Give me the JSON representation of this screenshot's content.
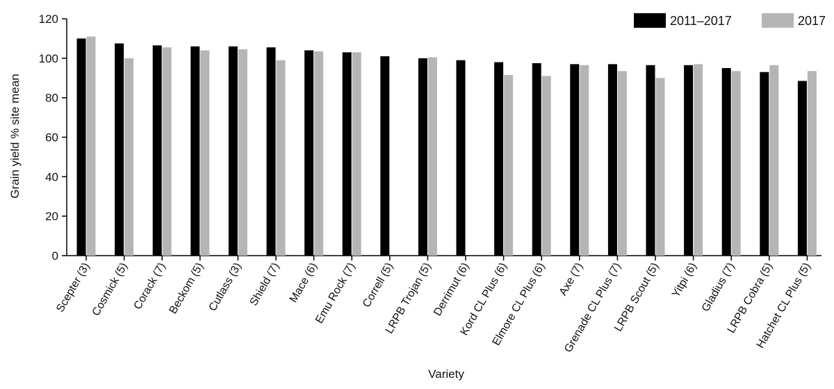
{
  "chart_data": {
    "type": "bar",
    "xlabel": "Variety",
    "ylabel": "Grain yield % site mean",
    "ylim": [
      0,
      120
    ],
    "yticks": [
      0,
      20,
      40,
      60,
      80,
      100,
      120
    ],
    "grid": false,
    "legend_position": "top-right",
    "categories": [
      "Scepter (3)",
      "Cosmick (5)",
      "Corack (7)",
      "Beckom (5)",
      "Cutlass (3)",
      "Shield (7)",
      "Mace (6)",
      "Emu Rock (7)",
      "Correll (5)",
      "LRPB Trojan (5)",
      "Derrimut (6)",
      "Kord CL Plus (6)",
      "Elmore CL Plus (6)",
      "Axe (7)",
      "Grenade CL Plus (7)",
      "LRPB Scout (5)",
      "Yitpi (6)",
      "Gladius (7)",
      "LRPB Cobra (5)",
      "Hatchet CL Plus (5)"
    ],
    "series": [
      {
        "name": "2011–2017",
        "color": "#000000",
        "values": [
          110,
          107.5,
          106.5,
          106,
          106,
          105.5,
          104,
          103,
          101,
          100,
          99,
          98,
          97.5,
          97,
          97,
          96.5,
          96.5,
          95,
          93,
          88.5
        ]
      },
      {
        "name": "2017",
        "color": "#b5b5b5",
        "values": [
          111,
          100,
          105.5,
          104,
          104.5,
          99,
          103.5,
          103,
          null,
          100.5,
          null,
          91.5,
          91,
          96.5,
          93.5,
          90,
          97,
          93.5,
          96.5,
          93.5
        ]
      }
    ]
  }
}
